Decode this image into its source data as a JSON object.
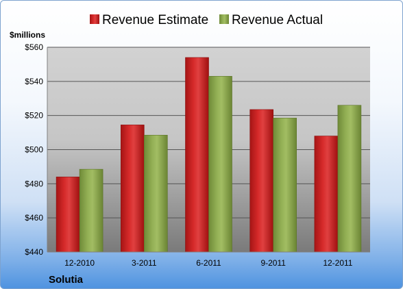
{
  "chart_data": {
    "type": "bar",
    "categories": [
      "12-2010",
      "3-2011",
      "6-2011",
      "9-2011",
      "12-2011"
    ],
    "series": [
      {
        "name": "Revenue Estimate",
        "values": [
          484,
          514.5,
          554,
          523.5,
          508
        ],
        "color": "#cc2020"
      },
      {
        "name": "Revenue Actual",
        "values": [
          488.5,
          508.5,
          543,
          518.5,
          526
        ],
        "color": "#8faa4e"
      }
    ],
    "ylabel": "$millions",
    "ylim": [
      440,
      560
    ],
    "yticks": [
      440,
      460,
      480,
      500,
      520,
      540,
      560
    ],
    "ytick_labels": [
      "$440",
      "$460",
      "$480",
      "$500",
      "$520",
      "$540",
      "$560"
    ],
    "grid": true,
    "legend": "top",
    "company": "Solutia"
  }
}
